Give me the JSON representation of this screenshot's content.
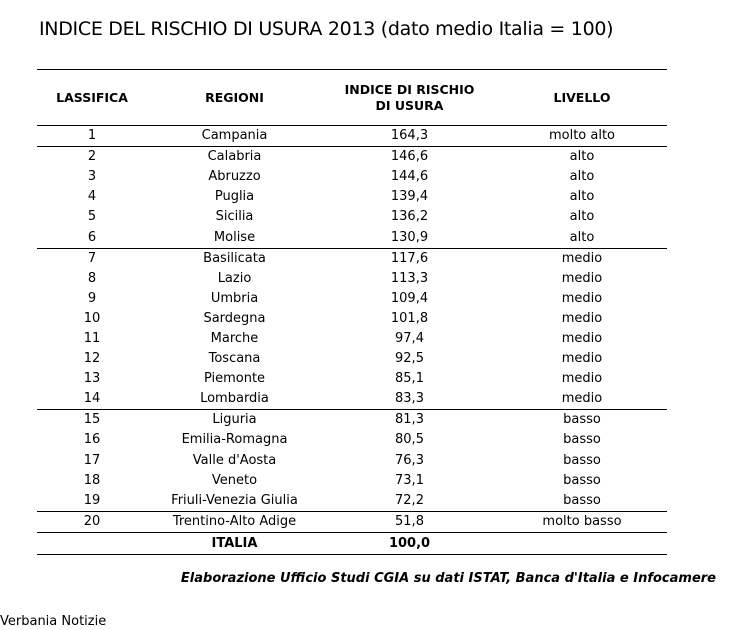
{
  "title": "INDICE DEL RISCHIO DI USURA 2013 (dato medio Italia = 100)",
  "chart_data": {
    "type": "table",
    "title": "INDICE DEL RISCHIO DI USURA 2013 (dato medio Italia = 100)",
    "columns": [
      "LASSIFICA",
      "REGIONI",
      "INDICE DI RISCHIO DI USURA",
      "LIVELLO"
    ],
    "rows": [
      {
        "rank": "1",
        "region": "Campania",
        "index": "164,3",
        "level": "molto alto"
      },
      {
        "rank": "2",
        "region": "Calabria",
        "index": "146,6",
        "level": "alto"
      },
      {
        "rank": "3",
        "region": "Abruzzo",
        "index": "144,6",
        "level": "alto"
      },
      {
        "rank": "4",
        "region": "Puglia",
        "index": "139,4",
        "level": "alto"
      },
      {
        "rank": "5",
        "region": "Sicilia",
        "index": "136,2",
        "level": "alto"
      },
      {
        "rank": "6",
        "region": "Molise",
        "index": "130,9",
        "level": "alto"
      },
      {
        "rank": "7",
        "region": "Basilicata",
        "index": "117,6",
        "level": "medio"
      },
      {
        "rank": "8",
        "region": "Lazio",
        "index": "113,3",
        "level": "medio"
      },
      {
        "rank": "9",
        "region": "Umbria",
        "index": "109,4",
        "level": "medio"
      },
      {
        "rank": "10",
        "region": "Sardegna",
        "index": "101,8",
        "level": "medio"
      },
      {
        "rank": "11",
        "region": "Marche",
        "index": "97,4",
        "level": "medio"
      },
      {
        "rank": "12",
        "region": "Toscana",
        "index": "92,5",
        "level": "medio"
      },
      {
        "rank": "13",
        "region": "Piemonte",
        "index": "85,1",
        "level": "medio"
      },
      {
        "rank": "14",
        "region": "Lombardia",
        "index": "83,3",
        "level": "medio"
      },
      {
        "rank": "15",
        "region": "Liguria",
        "index": "81,3",
        "level": "basso"
      },
      {
        "rank": "16",
        "region": "Emilia-Romagna",
        "index": "80,5",
        "level": "basso"
      },
      {
        "rank": "17",
        "region": "Valle d'Aosta",
        "index": "76,3",
        "level": "basso"
      },
      {
        "rank": "18",
        "region": "Veneto",
        "index": "73,1",
        "level": "basso"
      },
      {
        "rank": "19",
        "region": "Friuli-Venezia Giulia",
        "index": "72,2",
        "level": "basso"
      },
      {
        "rank": "20",
        "region": "Trentino-Alto Adige",
        "index": "51,8",
        "level": "molto basso"
      }
    ],
    "total": {
      "region": "ITALIA",
      "index": "100,0"
    }
  },
  "header": {
    "rank": "LASSIFICA",
    "region": "REGIONI",
    "index_line1": "INDICE DI RISCHIO",
    "index_line2": "DI USURA",
    "level": "LIVELLO"
  },
  "source": "Elaborazione Ufficio Studi CGIA su dati ISTAT, Banca d'Italia e Infocamere",
  "footer": "Verbania Notizie"
}
